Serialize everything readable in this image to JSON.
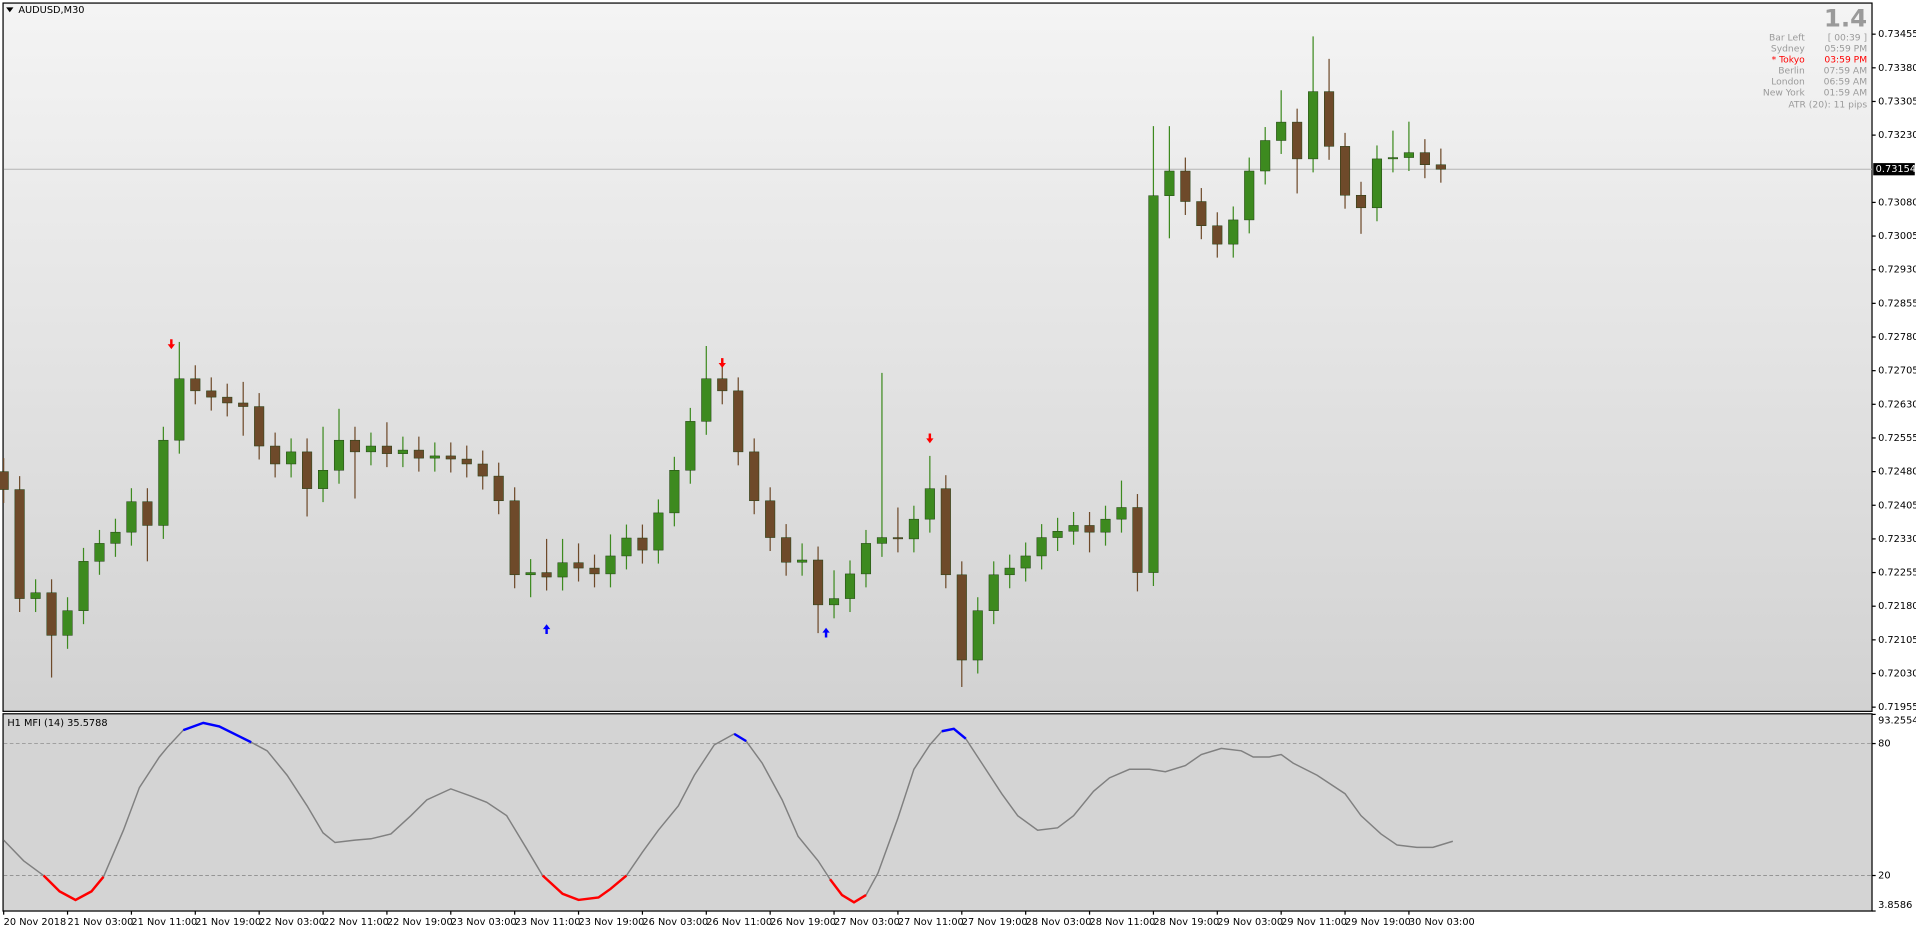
{
  "chart_data": [
    {
      "type": "candlestick",
      "title": "AUDUSD,M30",
      "x": [
        0,
        4,
        8,
        12,
        16,
        20,
        24,
        28,
        32,
        36,
        40,
        44,
        48,
        52,
        56,
        60,
        64,
        68,
        72,
        76,
        80,
        84,
        88,
        92,
        96,
        100,
        104,
        108,
        112,
        116,
        120,
        124,
        128,
        132,
        136,
        140,
        144,
        148,
        152,
        156,
        160,
        164,
        168,
        172,
        176,
        180,
        184,
        188,
        192,
        196,
        200,
        204,
        208,
        212,
        216,
        220,
        224,
        228,
        232,
        236,
        240,
        244,
        248,
        252,
        256,
        260,
        264,
        268,
        272,
        276,
        280,
        284,
        288,
        292,
        296,
        300,
        304,
        308,
        312,
        316,
        320,
        324,
        328,
        332,
        336,
        340,
        344,
        348,
        352,
        356,
        360
      ],
      "open": [
        0.7248,
        0.7244,
        0.72197,
        0.7221,
        0.72115,
        0.7217,
        0.7228,
        0.7232,
        0.72345,
        0.72413,
        0.7236,
        0.7255,
        0.72687,
        0.7266,
        0.72646,
        0.72633,
        0.72625,
        0.72537,
        0.72497,
        0.72524,
        0.72442,
        0.72483,
        0.7255,
        0.72524,
        0.72537,
        0.7252,
        0.72528,
        0.7251,
        0.72515,
        0.72508,
        0.72497,
        0.7247,
        0.72415,
        0.7225,
        0.72255,
        0.72245,
        0.72277,
        0.72265,
        0.72252,
        0.72292,
        0.72332,
        0.72305,
        0.72388,
        0.72483,
        0.72592,
        0.72687,
        0.7266,
        0.72524,
        0.72415,
        0.72333,
        0.72278,
        0.72283,
        0.72183,
        0.72197,
        0.72252,
        0.7232,
        0.72333,
        0.7233,
        0.72374,
        0.72442,
        0.7225,
        0.7206,
        0.7217,
        0.7225,
        0.72265,
        0.72292,
        0.72333,
        0.72347,
        0.7236,
        0.72345,
        0.72374,
        0.724,
        0.72255,
        0.73095,
        0.7315,
        0.73082,
        0.73028,
        0.72987,
        0.73041,
        0.7315,
        0.73218,
        0.73259,
        0.73177,
        0.73327,
        0.73205,
        0.73096,
        0.73068,
        0.73177,
        0.7318,
        0.73191,
        0.73164
      ],
      "high": [
        0.7251,
        0.7247,
        0.7224,
        0.7224,
        0.722,
        0.7231,
        0.7235,
        0.72375,
        0.72443,
        0.72443,
        0.7258,
        0.72769,
        0.72717,
        0.7269,
        0.72676,
        0.7268,
        0.72655,
        0.72567,
        0.72554,
        0.72554,
        0.7258,
        0.7262,
        0.7258,
        0.72567,
        0.7259,
        0.72558,
        0.72558,
        0.72545,
        0.72545,
        0.72538,
        0.72527,
        0.725,
        0.72445,
        0.72285,
        0.7233,
        0.7233,
        0.7232,
        0.72295,
        0.7234,
        0.72362,
        0.72362,
        0.72418,
        0.72513,
        0.72622,
        0.7276,
        0.72717,
        0.7269,
        0.72554,
        0.72445,
        0.72363,
        0.7232,
        0.72313,
        0.7226,
        0.72282,
        0.7235,
        0.727,
        0.724,
        0.72404,
        0.72515,
        0.72472,
        0.7228,
        0.722,
        0.7228,
        0.72295,
        0.72322,
        0.72363,
        0.72377,
        0.7239,
        0.7239,
        0.72404,
        0.7246,
        0.7243,
        0.7325,
        0.7325,
        0.7318,
        0.73112,
        0.73058,
        0.73071,
        0.7318,
        0.73248,
        0.7333,
        0.73289,
        0.7345,
        0.734,
        0.73235,
        0.73126,
        0.73207,
        0.7324,
        0.7326,
        0.73221,
        0.732
      ],
      "low": [
        0.7241,
        0.72167,
        0.72167,
        0.72021,
        0.72085,
        0.7214,
        0.7225,
        0.7229,
        0.72315,
        0.7228,
        0.7233,
        0.7252,
        0.7263,
        0.72616,
        0.72603,
        0.7256,
        0.72507,
        0.72467,
        0.72467,
        0.7238,
        0.72412,
        0.72453,
        0.7242,
        0.72494,
        0.7249,
        0.7249,
        0.7248,
        0.7248,
        0.72478,
        0.72467,
        0.7244,
        0.72385,
        0.7222,
        0.722,
        0.72215,
        0.72215,
        0.72235,
        0.72222,
        0.72222,
        0.72262,
        0.72275,
        0.72275,
        0.72358,
        0.72453,
        0.72562,
        0.7263,
        0.72494,
        0.72385,
        0.72303,
        0.72248,
        0.72248,
        0.7212,
        0.72153,
        0.72167,
        0.72222,
        0.7229,
        0.723,
        0.723,
        0.72344,
        0.7222,
        0.72,
        0.7203,
        0.7214,
        0.7222,
        0.72235,
        0.72262,
        0.72303,
        0.72317,
        0.723,
        0.72315,
        0.72344,
        0.72213,
        0.72225,
        0.73,
        0.73052,
        0.72998,
        0.72957,
        0.72957,
        0.73011,
        0.7312,
        0.73188,
        0.731,
        0.73147,
        0.73175,
        0.73066,
        0.7301,
        0.73038,
        0.73147,
        0.7315,
        0.73134,
        0.73124
      ],
      "close": [
        0.7244,
        0.72197,
        0.7221,
        0.72115,
        0.7217,
        0.7228,
        0.7232,
        0.72345,
        0.72413,
        0.7236,
        0.7255,
        0.72687,
        0.7266,
        0.72646,
        0.72633,
        0.72625,
        0.72537,
        0.72497,
        0.72524,
        0.72442,
        0.72483,
        0.7255,
        0.72524,
        0.72537,
        0.7252,
        0.72528,
        0.7251,
        0.72515,
        0.72508,
        0.72497,
        0.7247,
        0.72415,
        0.7225,
        0.72255,
        0.72245,
        0.72277,
        0.72265,
        0.72252,
        0.72292,
        0.72332,
        0.72305,
        0.72388,
        0.72483,
        0.72592,
        0.72687,
        0.7266,
        0.72524,
        0.72415,
        0.72333,
        0.72278,
        0.72283,
        0.72183,
        0.72197,
        0.72252,
        0.7232,
        0.72333,
        0.7233,
        0.72374,
        0.72442,
        0.7225,
        0.7206,
        0.7217,
        0.7225,
        0.72265,
        0.72292,
        0.72333,
        0.72347,
        0.7236,
        0.72345,
        0.72374,
        0.724,
        0.72255,
        0.73095,
        0.7315,
        0.73082,
        0.73028,
        0.72987,
        0.73041,
        0.7315,
        0.73218,
        0.73259,
        0.73177,
        0.73327,
        0.73205,
        0.73096,
        0.73068,
        0.73177,
        0.7318,
        0.73191,
        0.73164,
        0.73154
      ],
      "up_color": "#3d8a1f",
      "down_color": "#6e4a2a",
      "current_price": 0.73154,
      "sell_arrows": {
        "x": [
          42,
          180,
          232
        ],
        "values": [
          0.72764,
          0.72722,
          0.72554
        ],
        "color": "#ff0000"
      },
      "buy_arrows": {
        "x": [
          136,
          206
        ],
        "values": [
          0.72129,
          0.72121
        ],
        "color": "#0000ff"
      },
      "xlim": [
        0,
        468
      ],
      "ylim": [
        0.71947,
        0.73523
      ],
      "yticks": [
        0.73455,
        {
          "value": 0.7338,
          "label": "0.73380"
        },
        0.73305,
        {
          "value": 0.7323,
          "label": "0.73230"
        },
        {
          "value": 0.7308,
          "label": "0.73080"
        },
        0.73005,
        {
          "value": 0.7293,
          "label": "0.72930"
        },
        0.72855,
        {
          "value": 0.7278,
          "label": "0.72780"
        },
        0.72705,
        {
          "value": 0.7263,
          "label": "0.72630"
        },
        0.72555,
        {
          "value": 0.7248,
          "label": "0.72480"
        },
        0.72405,
        {
          "value": 0.7233,
          "label": "0.72330"
        },
        0.72255,
        {
          "value": 0.7218,
          "label": "0.72180"
        },
        0.72105,
        {
          "value": 0.7203,
          "label": "0.72030"
        },
        0.71955
      ]
    },
    {
      "type": "line",
      "title": "H1 MFI (14) 35.5788",
      "color": "#808080",
      "upper_color": "#0000ff",
      "lower_color": "#ff0000",
      "x": [
        0,
        5,
        10,
        14,
        18,
        22,
        25,
        30,
        34,
        39,
        41,
        45,
        50,
        54,
        59,
        62,
        66,
        71,
        76,
        80,
        83,
        88,
        92,
        97,
        102,
        106,
        112,
        117,
        121,
        126,
        131,
        135,
        140,
        144,
        149,
        152,
        156,
        160,
        164,
        169,
        173,
        178,
        183,
        186,
        190,
        195,
        199,
        204,
        207,
        210,
        213,
        216,
        219,
        224,
        228,
        232,
        235,
        238,
        241,
        245,
        250,
        254,
        259,
        264,
        268,
        273,
        277,
        282,
        287,
        291,
        296,
        300,
        305,
        310,
        313,
        317,
        320,
        323,
        329,
        336,
        340,
        345,
        349,
        354,
        358,
        363
      ],
      "values": [
        36.1,
        26.7,
        20,
        12.8,
        8.9,
        12.8,
        19.4,
        40.6,
        60,
        73.9,
        78.3,
        86.1,
        89.4,
        87.8,
        83.3,
        80.6,
        76.7,
        65.6,
        51.7,
        39.4,
        35,
        36.1,
        36.7,
        38.9,
        47.2,
        54.4,
        59.4,
        56.1,
        53.3,
        47.2,
        32.2,
        20,
        11.7,
        8.9,
        10,
        13.9,
        20,
        30.6,
        40.6,
        51.7,
        65.6,
        79.4,
        84.4,
        81.1,
        71.1,
        54.4,
        37.8,
        26.7,
        18.3,
        11.1,
        7.8,
        11.1,
        21.1,
        46.1,
        68.3,
        79.4,
        85.6,
        86.7,
        82.2,
        71.1,
        57.2,
        47.2,
        40.6,
        41.7,
        47.2,
        58.3,
        64.4,
        68.3,
        68.3,
        67.2,
        70,
        75,
        77.8,
        76.7,
        73.9,
        73.9,
        75,
        71.1,
        65.6,
        57.2,
        47.2,
        38.9,
        33.9,
        32.8,
        32.8,
        35.5788
      ],
      "xlim": [
        0,
        468
      ],
      "ylim": [
        3.8586,
        93.2554
      ],
      "yticks": [
        3.8586,
        20,
        80,
        93.2554
      ],
      "xticks": [
        {
          "value": 0,
          "label": "20 Nov 2018"
        },
        {
          "value": 16,
          "label": "21 Nov 03:00"
        },
        {
          "value": 32,
          "label": "21 Nov 11:00"
        },
        {
          "value": 48,
          "label": "21 Nov 19:00"
        },
        {
          "value": 64,
          "label": "22 Nov 03:00"
        },
        {
          "value": 80,
          "label": "22 Nov 11:00"
        },
        {
          "value": 96,
          "label": "22 Nov 19:00"
        },
        {
          "value": 112,
          "label": "23 Nov 03:00"
        },
        {
          "value": 128,
          "label": "23 Nov 11:00"
        },
        {
          "value": 144,
          "label": "23 Nov 19:00"
        },
        {
          "value": 160,
          "label": "26 Nov 03:00"
        },
        {
          "value": 176,
          "label": "26 Nov 11:00"
        },
        {
          "value": 192,
          "label": "26 Nov 19:00"
        },
        {
          "value": 208,
          "label": "27 Nov 03:00"
        },
        {
          "value": 224,
          "label": "27 Nov 11:00"
        },
        {
          "value": 240,
          "label": "27 Nov 19:00"
        },
        {
          "value": 256,
          "label": "28 Nov 03:00"
        },
        {
          "value": 272,
          "label": "28 Nov 11:00"
        },
        {
          "value": 288,
          "label": "28 Nov 19:00"
        },
        {
          "value": 304,
          "label": "29 Nov 03:00"
        },
        {
          "value": 320,
          "label": "29 Nov 11:00"
        },
        {
          "value": 336,
          "label": "29 Nov 19:00"
        },
        {
          "value": 352,
          "label": "30 Nov 03:00"
        }
      ]
    }
  ],
  "info_panel": {
    "spread": "1.4",
    "rows": [
      {
        "label": "Bar Left",
        "value": "[ 00:39 ]"
      },
      {
        "label": "Sydney",
        "value": "05:59 PM"
      },
      {
        "label": "* Tokyo",
        "value": "03:59 PM",
        "color": "#ff0000"
      },
      {
        "label": "Berlin",
        "value": "07:59 AM"
      },
      {
        "label": "London",
        "value": "06:59 AM"
      },
      {
        "label": "New York",
        "value": "01:59 AM"
      }
    ],
    "atr": "ATR (20): 11 pips"
  }
}
